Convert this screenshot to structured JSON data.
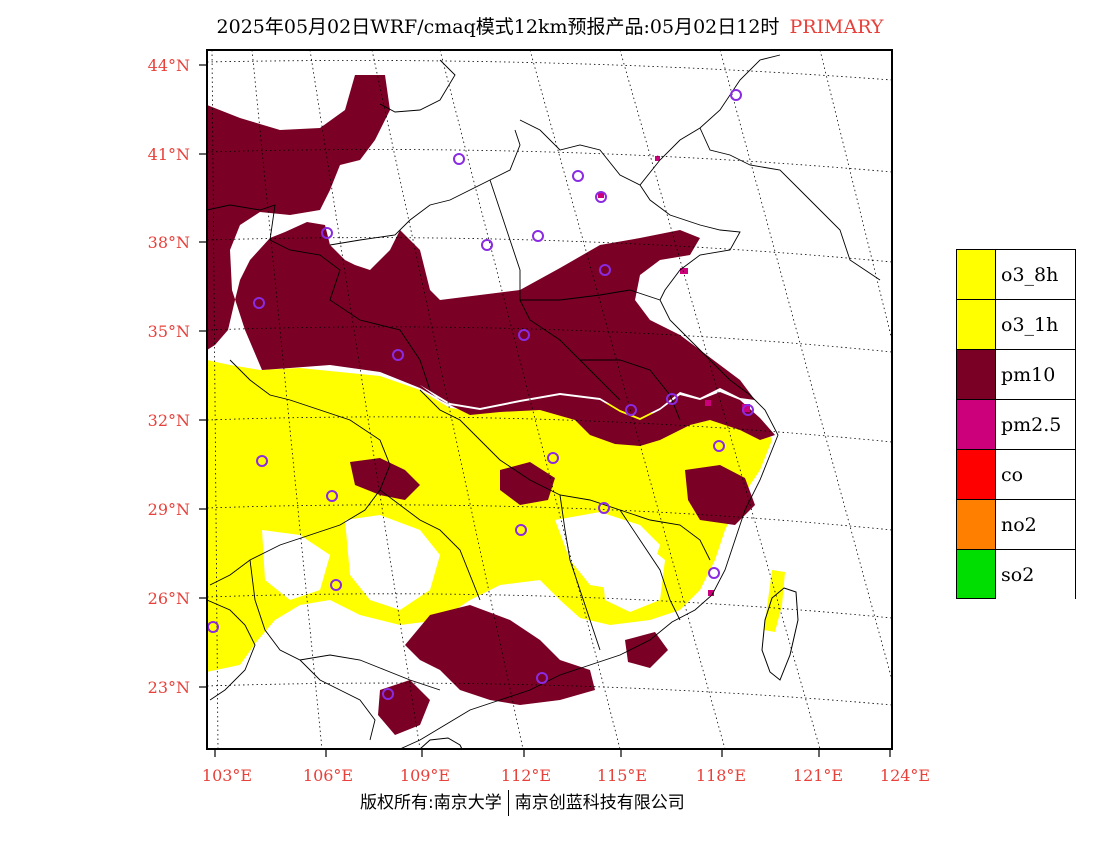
{
  "title": {
    "main": "2025年05月02日WRF/cmaq模式12km预报产品:05月02日12时",
    "tag": "PRIMARY"
  },
  "footer": {
    "left": "版权所有:南京大学",
    "right": "南京创蓝科技有限公司"
  },
  "map": {
    "lat_labels": [
      "44°N",
      "41°N",
      "38°N",
      "35°N",
      "32°N",
      "29°N",
      "26°N",
      "23°N"
    ],
    "lon_labels": [
      "103°E",
      "106°E",
      "109°E",
      "112°E",
      "115°E",
      "118°E",
      "121°E",
      "124°E"
    ],
    "label_color": "#e8403a",
    "pollutant_colors": {
      "o3": "#ffff00",
      "pm10": "#7a0026",
      "pm25": "#cc007a"
    }
  },
  "legend": [
    {
      "label": "o3_8h",
      "color": "#ffff00"
    },
    {
      "label": "o3_1h",
      "color": "#ffff00"
    },
    {
      "label": "pm10",
      "color": "#7a0026"
    },
    {
      "label": "pm2.5",
      "color": "#cc007a"
    },
    {
      "label": "co",
      "color": "#ff0000"
    },
    {
      "label": "no2",
      "color": "#ff7f00"
    },
    {
      "label": "so2",
      "color": "#00dd00"
    }
  ]
}
